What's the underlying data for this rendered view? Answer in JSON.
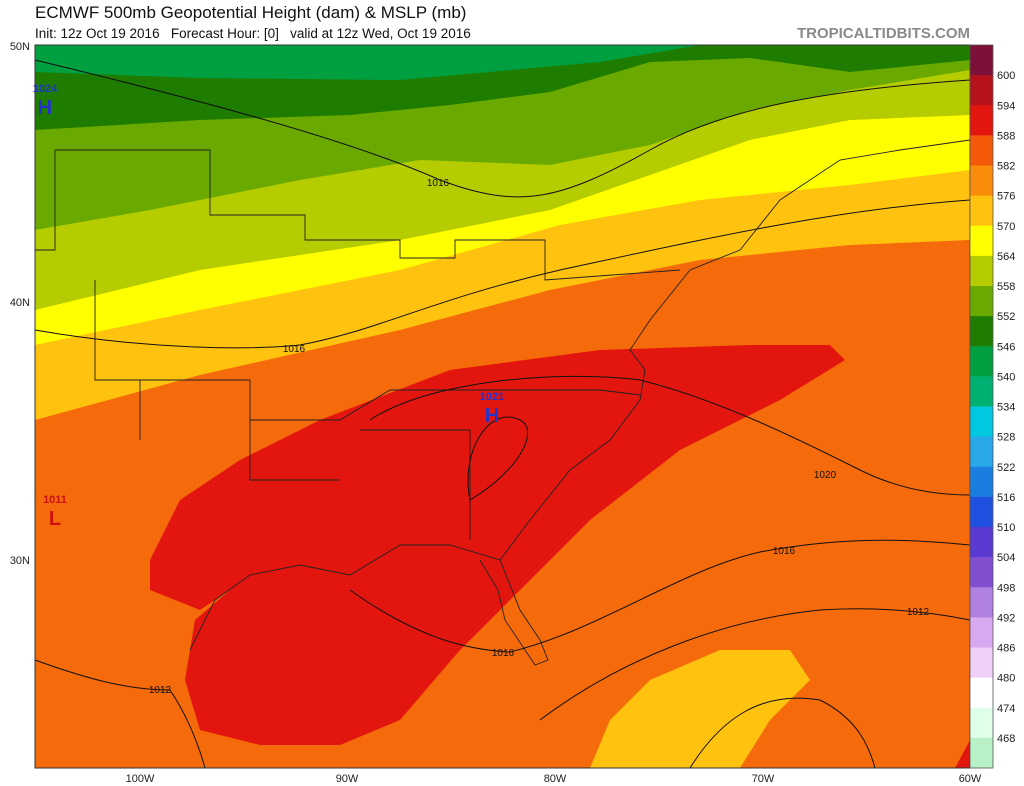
{
  "header": {
    "title": "ECMWF 500mb Geopotential Height (dam) & MSLP (mb)",
    "subtitle": "Init: 12z Oct 19 2016   Forecast Hour: [0]   valid at 12z Wed, Oct 19 2016",
    "credit": "TROPICALTIDBITS.COM"
  },
  "latitude_labels": [
    "50N",
    "40N",
    "30N"
  ],
  "longitude_labels": [
    "100W",
    "90W",
    "80W",
    "70W",
    "60W"
  ],
  "pressure_centers": [
    {
      "label": "H",
      "value": 1024,
      "color": "#2233cc"
    },
    {
      "label": "H",
      "value": 1021,
      "color": "#2233cc"
    },
    {
      "label": "L",
      "value": 1011,
      "color": "#cc1111"
    }
  ],
  "contour_labels": [
    1016,
    1016,
    1020,
    1016,
    1012,
    1016,
    1012
  ],
  "colorbar": {
    "levels": [
      600,
      594,
      588,
      582,
      576,
      570,
      564,
      558,
      552,
      546,
      540,
      534,
      528,
      522,
      516,
      510,
      504,
      498,
      492,
      486,
      480,
      474,
      468
    ],
    "colors": [
      "#7d1038",
      "#b5121b",
      "#e3160f",
      "#f55a0a",
      "#f98c0a",
      "#ffc20e",
      "#ffff00",
      "#b5cc00",
      "#6aaa00",
      "#1e7d00",
      "#00a040",
      "#00b070",
      "#00c8e0",
      "#28a8e8",
      "#1a7ee0",
      "#2050e0",
      "#5a3ad0",
      "#8050d0",
      "#b080e0",
      "#d8a8f0",
      "#f0d0f8",
      "#ffffff",
      "#e0ffe8",
      "#b8f0c8"
    ]
  }
}
